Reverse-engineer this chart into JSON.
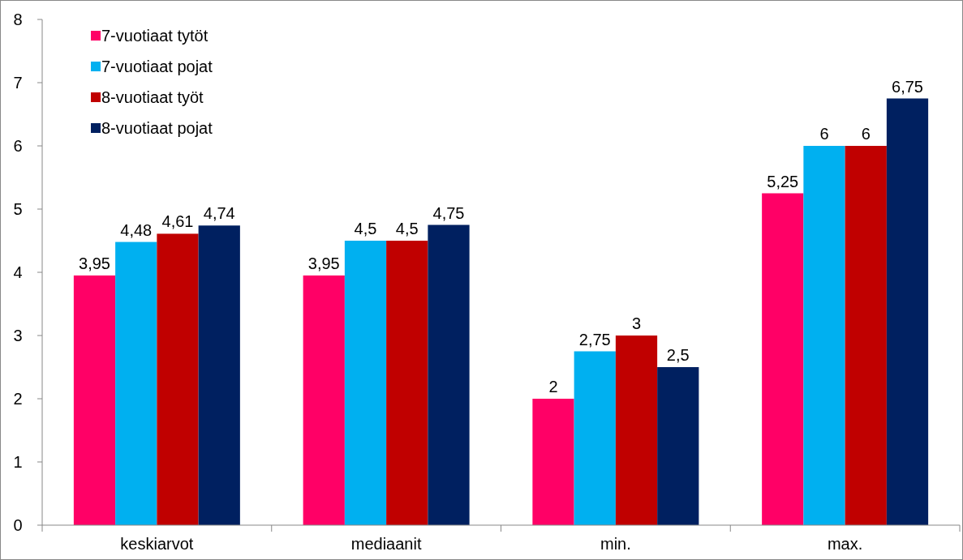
{
  "chart_data": {
    "type": "bar",
    "categories": [
      "keskiarvot",
      "mediaanit",
      "min.",
      "max."
    ],
    "series": [
      {
        "name": "7-vuotiaat tytöt",
        "color": "#ff0066",
        "values": [
          3.95,
          3.95,
          2,
          5.25
        ],
        "value_labels": [
          "3,95",
          "3,95",
          "2",
          "5,25"
        ]
      },
      {
        "name": "7-vuotiaat pojat",
        "color": "#00b0f0",
        "values": [
          4.48,
          4.5,
          2.75,
          6
        ],
        "value_labels": [
          "4,48",
          "4,5",
          "2,75",
          "6"
        ]
      },
      {
        "name": "8-vuotiaat työt",
        "color": "#c00000",
        "values": [
          4.61,
          4.5,
          3,
          6
        ],
        "value_labels": [
          "4,61",
          "4,5",
          "3",
          "6"
        ]
      },
      {
        "name": "8-vuotiaat pojat",
        "color": "#002060",
        "values": [
          4.74,
          4.75,
          2.5,
          6.75
        ],
        "value_labels": [
          "4,74",
          "4,75",
          "2,5",
          "6,75"
        ]
      }
    ],
    "ylim": [
      0,
      8
    ],
    "yticks": [
      0,
      1,
      2,
      3,
      4,
      5,
      6,
      7,
      8
    ],
    "legend": "top left"
  }
}
